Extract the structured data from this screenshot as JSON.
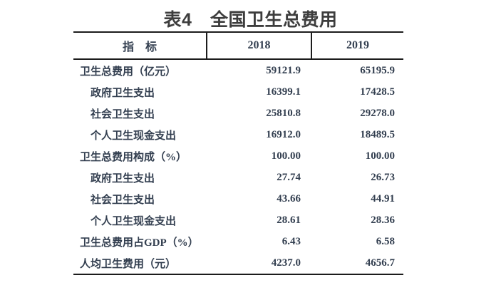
{
  "title": "表4　全国卫生总费用",
  "colors": {
    "page_background": "#ffffff",
    "title_text": "#3d3d3d",
    "table_text": "#333f50",
    "border": "#1c1c1c"
  },
  "table": {
    "columns": [
      "指　标",
      "2018",
      "2019"
    ],
    "rows": [
      {
        "label": "卫生总费用（亿元）",
        "indent": false,
        "v2018": "59121.9",
        "v2019": "65195.9"
      },
      {
        "label": "政府卫生支出",
        "indent": true,
        "v2018": "16399.1",
        "v2019": "17428.5"
      },
      {
        "label": "社会卫生支出",
        "indent": true,
        "v2018": "25810.8",
        "v2019": "29278.0"
      },
      {
        "label": "个人卫生现金支出",
        "indent": true,
        "v2018": "16912.0",
        "v2019": "18489.5"
      },
      {
        "label": "卫生总费用构成（%）",
        "indent": false,
        "v2018": "100.00",
        "v2019": "100.00"
      },
      {
        "label": "政府卫生支出",
        "indent": true,
        "v2018": "27.74",
        "v2019": "26.73"
      },
      {
        "label": "社会卫生支出",
        "indent": true,
        "v2018": "43.66",
        "v2019": "44.91"
      },
      {
        "label": "个人卫生现金支出",
        "indent": true,
        "v2018": "28.61",
        "v2019": "28.36"
      },
      {
        "label": "卫生总费用占GDP（%）",
        "indent": false,
        "v2018": "6.43",
        "v2019": "6.58"
      },
      {
        "label": "人均卫生费用（元）",
        "indent": false,
        "v2018": "4237.0",
        "v2019": "4656.7"
      }
    ]
  }
}
